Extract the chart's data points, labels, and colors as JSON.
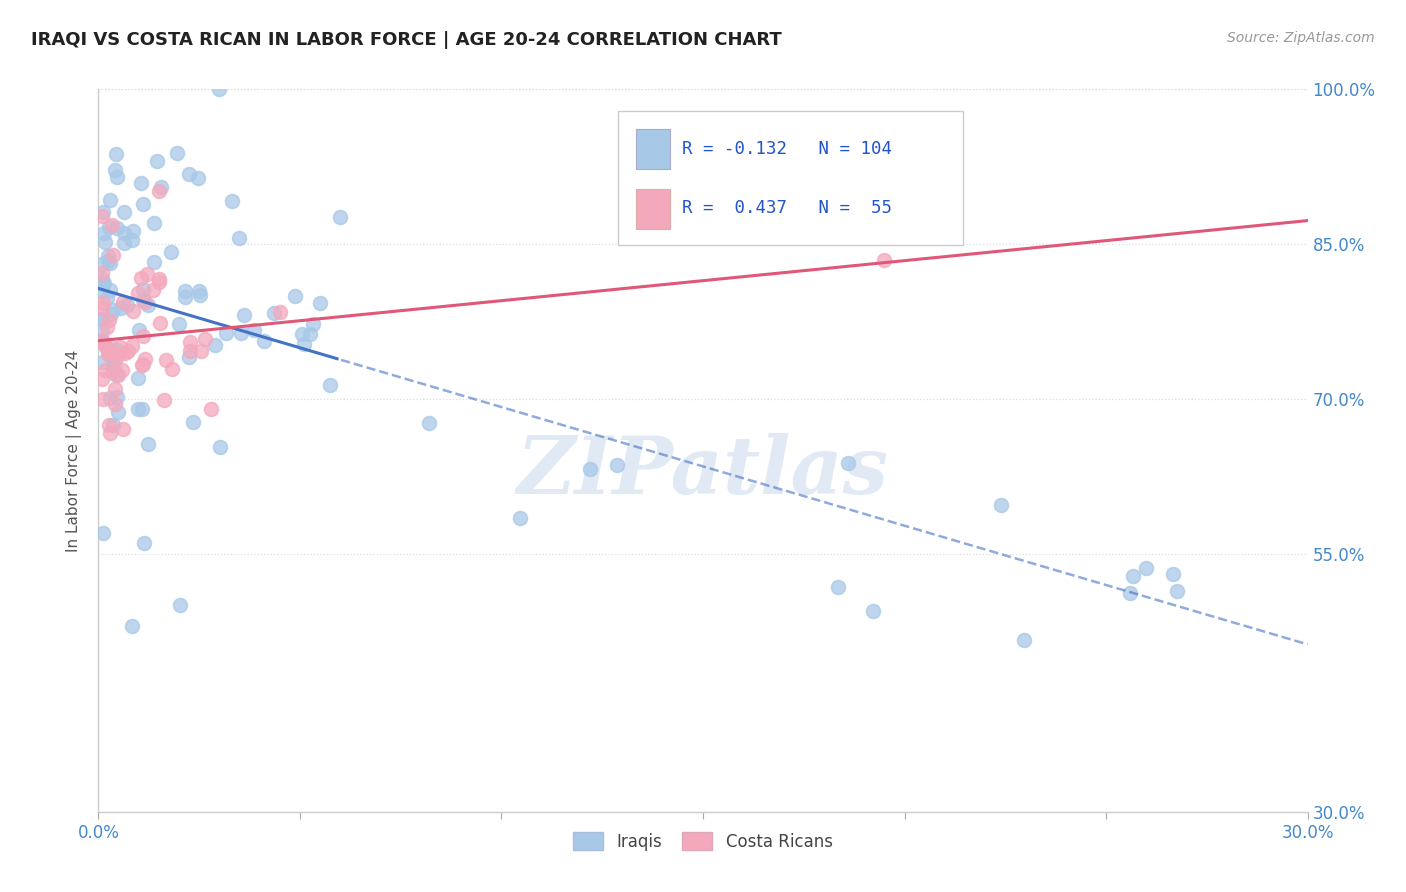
{
  "title": "IRAQI VS COSTA RICAN IN LABOR FORCE | AGE 20-24 CORRELATION CHART",
  "source": "Source: ZipAtlas.com",
  "ylabel": "In Labor Force | Age 20-24",
  "x_min": 0.0,
  "x_max": 0.3,
  "y_min": 0.3,
  "y_max": 1.0,
  "x_tick_positions": [
    0.0,
    0.05,
    0.1,
    0.15,
    0.2,
    0.25,
    0.3
  ],
  "x_tick_labels": [
    "0.0%",
    "",
    "",
    "",
    "",
    "",
    "30.0%"
  ],
  "y_tick_positions": [
    0.3,
    0.55,
    0.7,
    0.85,
    1.0
  ],
  "y_tick_labels_right": [
    "30.0%",
    "55.0%",
    "70.0%",
    "85.0%",
    "100.0%"
  ],
  "iraqi_R": -0.132,
  "iraqi_N": 104,
  "costa_R": 0.437,
  "costa_N": 55,
  "iraqi_color": "#a8c8e8",
  "costa_color": "#f4a8bc",
  "iraqi_line_color": "#4472c4",
  "costa_line_color": "#e05878",
  "stat_text_color": "#2255cc",
  "watermark_color": "#c8d8ec",
  "background_color": "#ffffff",
  "grid_color": "#dddddd",
  "right_axis_color": "#4488cc",
  "bottom_axis_color": "#4488cc"
}
